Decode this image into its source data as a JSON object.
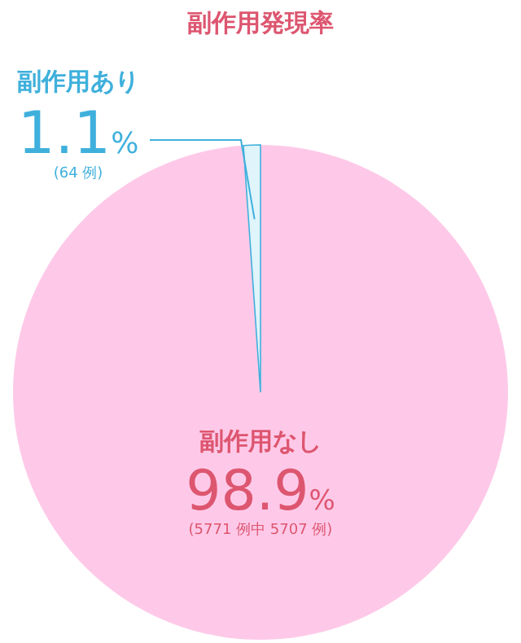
{
  "chart_data": {
    "type": "pie",
    "title": "副作用発現率",
    "categories": [
      "副作用あり",
      "副作用なし"
    ],
    "values": [
      1.1,
      98.9
    ],
    "colors": [
      "#dff4fb",
      "#fec9e8"
    ],
    "value_labels": [
      "1.1%",
      "98.9%"
    ],
    "annotations": [
      "(64 例)",
      "(5771 例中 5707 例)"
    ]
  }
}
